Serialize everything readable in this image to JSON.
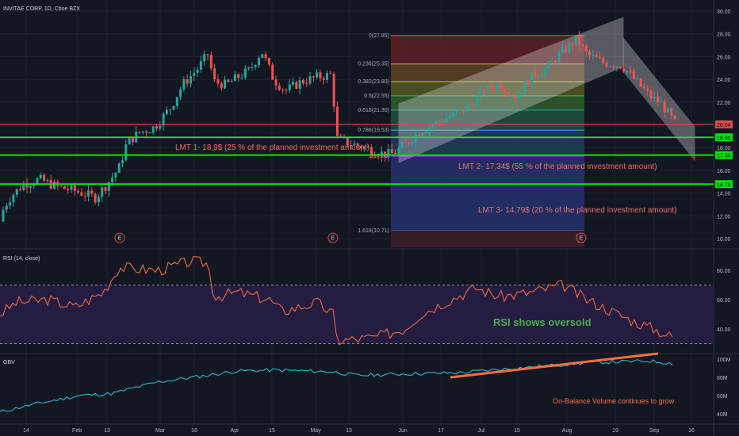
{
  "colors": {
    "background": "#131722",
    "up": "#26a69a",
    "down": "#ef5350",
    "green_line": "#00e600",
    "red_line": "#e04a4a",
    "annotation": "#f06a6a",
    "rsi_line": "#ff7043",
    "rsi_band": "#2a1e4a",
    "obv_line": "#26c6da",
    "rsi_label": "#4caf50",
    "channel": "#d8d8d8"
  },
  "header": {
    "symbol_title": "INVITAE CORP, 1D, Cboe BZX"
  },
  "price_axis": {
    "ticks": [
      "30.00",
      "28.00",
      "26.00",
      "24.00",
      "22.00",
      "20.00",
      "18.00",
      "16.00",
      "14.00",
      "12.00",
      "10.00"
    ],
    "tick_values": [
      30,
      28,
      26,
      24,
      22,
      20,
      18,
      16,
      14,
      12,
      10
    ],
    "current_price_label": "20.04",
    "lmt1_label": "18.90",
    "lmt2_label": "17.34",
    "lmt3_label": "14.79"
  },
  "time_axis": {
    "labels": [
      "14",
      "Feb",
      "13",
      "Mar",
      "18",
      "Apr",
      "15",
      "May",
      "13",
      "Jun",
      "17",
      "Jul",
      "15",
      "Aug",
      "19",
      "Sep",
      "16"
    ]
  },
  "earnings_markers": [
    "E",
    "E",
    "E"
  ],
  "annotations": {
    "lmt1": "LMT 1- 18,9$ (25 % of the planned investment amount)",
    "lmt2": "LMT 2- 17,34$ (55 % of the planned investment amount)",
    "lmt3": "LMT 3- 14,79$ (20 % of the planned investment amount)",
    "rsi_note": "RSI shows oversold",
    "obv_note": "On-Balance Volume continues to grow"
  },
  "fibonacci": {
    "levels": [
      {
        "label": "0(27.85)",
        "value": 27.85
      },
      {
        "label": "0.236(25.35)",
        "value": 25.35
      },
      {
        "label": "0.382(23.80)",
        "value": 23.8
      },
      {
        "label": "0.5(22.55)",
        "value": 22.55
      },
      {
        "label": "0.618(21.30)",
        "value": 21.3
      },
      {
        "label": "0.786(19.53)",
        "value": 19.53
      },
      {
        "label": "1(17.25)",
        "value": 17.25
      },
      {
        "label": "1.618(10.71)",
        "value": 10.71
      }
    ],
    "fill_colors": [
      "#5a1f25",
      "#5a3f22",
      "#4e5420",
      "#2f5a2a",
      "#1f4f40",
      "#1e3d55",
      "#23306a"
    ]
  },
  "rsi": {
    "title": "RSI (14, close)",
    "ticks": [
      "80.00",
      "60.00",
      "40.00"
    ],
    "tick_values": [
      80,
      60,
      40
    ],
    "upper": 70,
    "lower": 30
  },
  "obv": {
    "title": "OBV",
    "ticks": [
      "100M",
      "80M",
      "60M",
      "40M"
    ],
    "tick_values": [
      100,
      80,
      60,
      40
    ]
  },
  "chart_data": {
    "type": "candlestick",
    "title": "INVITAE CORP, 1D, Cboe BZX",
    "series": [
      {
        "name": "close",
        "x": [
          "Jan 1",
          "Jan 14",
          "Feb 1",
          "Feb 13",
          "Mar 1",
          "Mar 18",
          "Apr 1",
          "Apr 15",
          "May 1",
          "May 13",
          "Jun 1",
          "Jun 17",
          "Jul 1",
          "Jul 15",
          "Aug 1",
          "Aug 19",
          "Sep 1",
          "Sep 8"
        ],
        "values": [
          11.5,
          14.6,
          15.0,
          14.0,
          19.5,
          25.0,
          25.5,
          26.5,
          24.5,
          18.0,
          17.5,
          20.0,
          23.5,
          24.5,
          27.0,
          25.5,
          23.5,
          20.04
        ]
      }
    ],
    "rsi_values": [
      50,
      58,
      60,
      55,
      82,
      85,
      62,
      65,
      55,
      32,
      38,
      50,
      68,
      62,
      70,
      55,
      42,
      34
    ],
    "obv_values": [
      42,
      50,
      60,
      62,
      75,
      82,
      87,
      88,
      86,
      82,
      84,
      85,
      88,
      92,
      96,
      97,
      98,
      95
    ],
    "horizontal_levels": [
      20.04,
      18.9,
      17.34,
      14.79
    ],
    "ylim": [
      9,
      31
    ]
  }
}
